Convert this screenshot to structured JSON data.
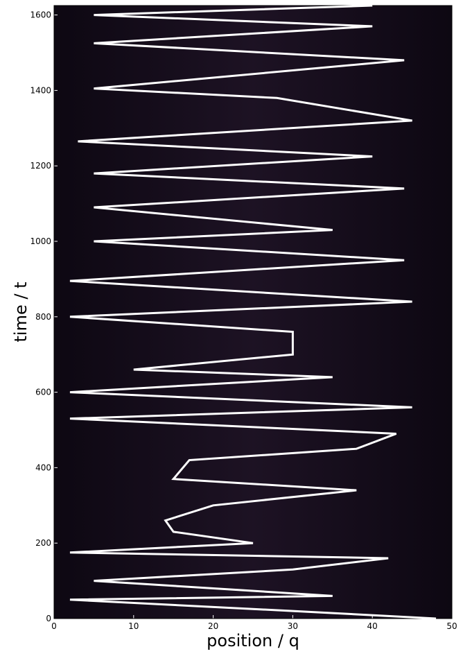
{
  "chart_data": {
    "type": "line",
    "x_label": "position / q",
    "y_label": "time / t",
    "xlim": [
      0,
      50
    ],
    "ylim": [
      0,
      1625
    ],
    "xticks": [
      0,
      10,
      20,
      30,
      40,
      50
    ],
    "yticks": [
      0,
      200,
      400,
      600,
      800,
      1000,
      1200,
      1400,
      1600
    ],
    "background": "#000000",
    "series": [
      {
        "color": "#ffffff",
        "x": [
          48,
          30,
          2,
          35,
          5,
          30,
          42,
          2,
          25,
          15,
          14,
          20,
          38,
          15,
          17,
          38,
          43,
          2,
          45,
          2,
          35,
          10,
          30,
          30,
          2,
          45,
          2,
          44,
          5,
          35,
          5,
          44,
          5,
          40,
          3,
          45,
          28,
          5,
          44,
          5,
          40,
          5,
          40
        ],
        "values": [
          0,
          20,
          50,
          60,
          100,
          130,
          160,
          175,
          200,
          230,
          260,
          300,
          340,
          370,
          420,
          450,
          490,
          530,
          560,
          600,
          640,
          660,
          700,
          760,
          800,
          840,
          895,
          950,
          1000,
          1030,
          1090,
          1140,
          1180,
          1225,
          1265,
          1320,
          1380,
          1405,
          1480,
          1525,
          1570,
          1600,
          1625
        ]
      }
    ]
  }
}
